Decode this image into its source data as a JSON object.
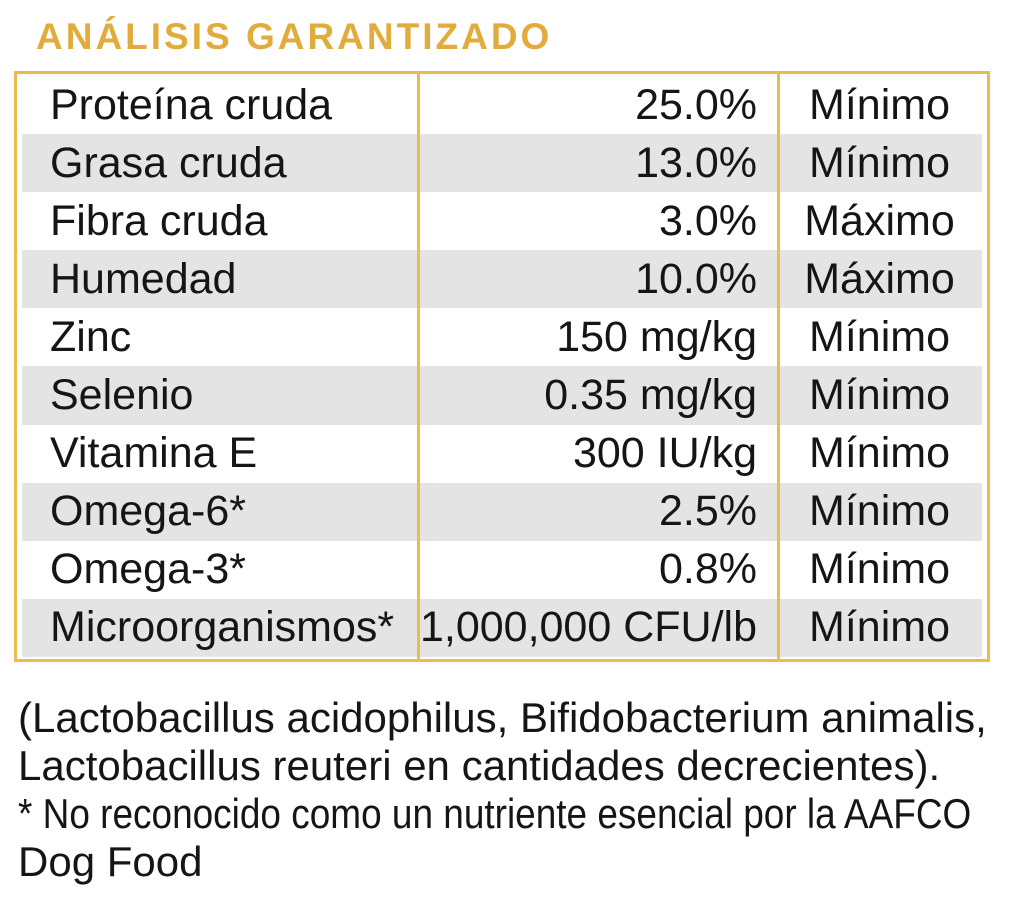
{
  "title": "ANÁLISIS GARANTIZADO",
  "colors": {
    "gold_title": "#E2AC3C",
    "gold_line": "#EABB4F",
    "row_gray": "#E4E4E5",
    "text": "#151515"
  },
  "table": {
    "rows": [
      {
        "nutrient": "Proteína cruda",
        "amount": "25.0%",
        "qualifier": "Mínimo"
      },
      {
        "nutrient": "Grasa cruda",
        "amount": "13.0%",
        "qualifier": "Mínimo"
      },
      {
        "nutrient": "Fibra cruda",
        "amount": "3.0%",
        "qualifier": "Máximo"
      },
      {
        "nutrient": "Humedad",
        "amount": "10.0%",
        "qualifier": "Máximo"
      },
      {
        "nutrient": "Zinc",
        "amount": "150 mg/kg",
        "qualifier": "Mínimo"
      },
      {
        "nutrient": "Selenio",
        "amount": "0.35 mg/kg",
        "qualifier": "Mínimo"
      },
      {
        "nutrient": "Vitamina E",
        "amount": "300 IU/kg",
        "qualifier": "Mínimo"
      },
      {
        "nutrient": "Omega-6*",
        "amount": "2.5%",
        "qualifier": "Mínimo"
      },
      {
        "nutrient": "Omega-3*",
        "amount": "0.8%",
        "qualifier": "Mínimo"
      },
      {
        "nutrient": "Microorganismos*",
        "amount": "1,000,000 CFU/lb",
        "qualifier": "Mínimo"
      }
    ]
  },
  "footnote": {
    "line1": "(Lactobacillus acidophilus, Bifidobacterium animalis,",
    "line2": "Lactobacillus reuteri en cantidades decrecientes).",
    "line3": "* No reconocido como un nutriente esencial por la AAFCO",
    "line4": "Dog Food"
  }
}
